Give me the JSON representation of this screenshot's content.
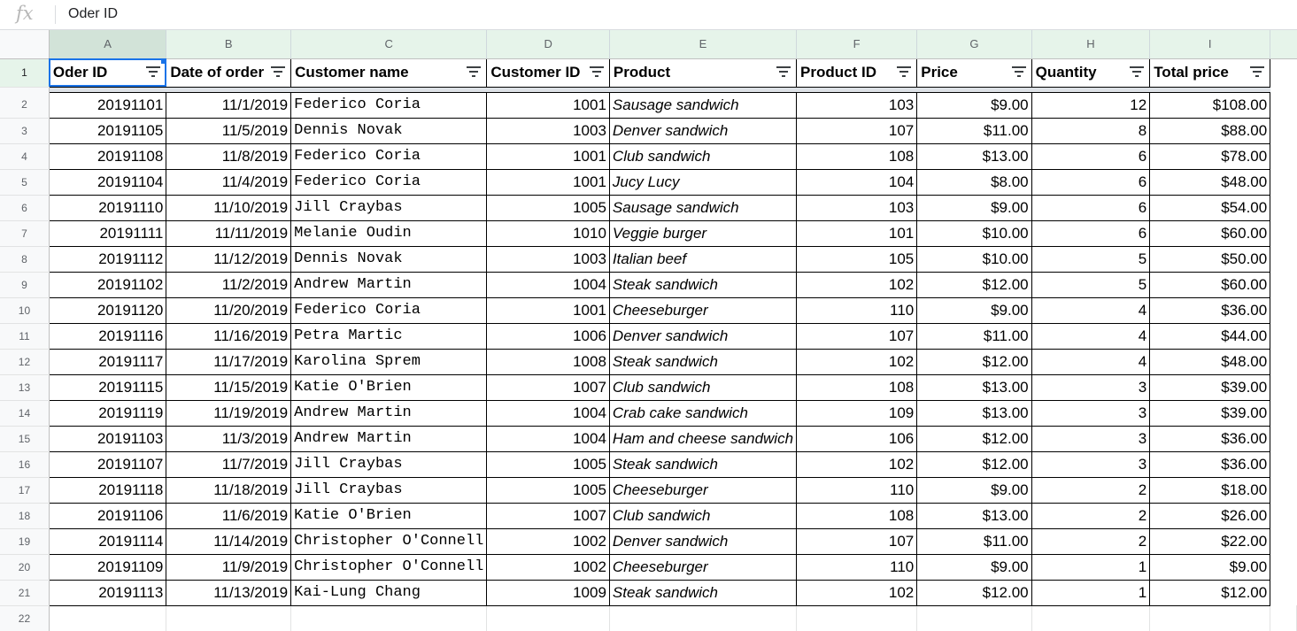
{
  "formula_bar": {
    "icon": "fx",
    "value": "Oder ID"
  },
  "columns": [
    "A",
    "B",
    "C",
    "D",
    "E",
    "F",
    "G",
    "H",
    "I"
  ],
  "headers": [
    "Oder ID",
    "Date of order",
    "Customer name",
    "Customer ID",
    "Product",
    "Product ID",
    "Price",
    "Quantity",
    "Total price"
  ],
  "header_row_number": "1",
  "rows": [
    {
      "n": "2",
      "id": "20191101",
      "date": "11/1/2019",
      "name": "Federico Coria",
      "cid": "1001",
      "product": "Sausage sandwich",
      "pid": "103",
      "price": "$9.00",
      "qty": "12",
      "total": "$108.00"
    },
    {
      "n": "3",
      "id": "20191105",
      "date": "11/5/2019",
      "name": "Dennis Novak",
      "cid": "1003",
      "product": "Denver sandwich",
      "pid": "107",
      "price": "$11.00",
      "qty": "8",
      "total": "$88.00"
    },
    {
      "n": "4",
      "id": "20191108",
      "date": "11/8/2019",
      "name": "Federico Coria",
      "cid": "1001",
      "product": "Club sandwich",
      "pid": "108",
      "price": "$13.00",
      "qty": "6",
      "total": "$78.00"
    },
    {
      "n": "5",
      "id": "20191104",
      "date": "11/4/2019",
      "name": "Federico Coria",
      "cid": "1001",
      "product": "Jucy Lucy",
      "pid": "104",
      "price": "$8.00",
      "qty": "6",
      "total": "$48.00"
    },
    {
      "n": "6",
      "id": "20191110",
      "date": "11/10/2019",
      "name": "Jill Craybas",
      "cid": "1005",
      "product": "Sausage sandwich",
      "pid": "103",
      "price": "$9.00",
      "qty": "6",
      "total": "$54.00"
    },
    {
      "n": "7",
      "id": "20191111",
      "date": "11/11/2019",
      "name": "Melanie Oudin",
      "cid": "1010",
      "product": "Veggie burger",
      "pid": "101",
      "price": "$10.00",
      "qty": "6",
      "total": "$60.00"
    },
    {
      "n": "8",
      "id": "20191112",
      "date": "11/12/2019",
      "name": "Dennis Novak",
      "cid": "1003",
      "product": "Italian beef",
      "pid": "105",
      "price": "$10.00",
      "qty": "5",
      "total": "$50.00"
    },
    {
      "n": "9",
      "id": "20191102",
      "date": "11/2/2019",
      "name": "Andrew Martin",
      "cid": "1004",
      "product": "Steak sandwich",
      "pid": "102",
      "price": "$12.00",
      "qty": "5",
      "total": "$60.00"
    },
    {
      "n": "10",
      "id": "20191120",
      "date": "11/20/2019",
      "name": "Federico Coria",
      "cid": "1001",
      "product": "Cheeseburger",
      "pid": "110",
      "price": "$9.00",
      "qty": "4",
      "total": "$36.00"
    },
    {
      "n": "11",
      "id": "20191116",
      "date": "11/16/2019",
      "name": "Petra Martic",
      "cid": "1006",
      "product": "Denver sandwich",
      "pid": "107",
      "price": "$11.00",
      "qty": "4",
      "total": "$44.00"
    },
    {
      "n": "12",
      "id": "20191117",
      "date": "11/17/2019",
      "name": "Karolina Sprem",
      "cid": "1008",
      "product": "Steak sandwich",
      "pid": "102",
      "price": "$12.00",
      "qty": "4",
      "total": "$48.00"
    },
    {
      "n": "13",
      "id": "20191115",
      "date": "11/15/2019",
      "name": "Katie O'Brien",
      "cid": "1007",
      "product": "Club sandwich",
      "pid": "108",
      "price": "$13.00",
      "qty": "3",
      "total": "$39.00"
    },
    {
      "n": "14",
      "id": "20191119",
      "date": "11/19/2019",
      "name": "Andrew Martin",
      "cid": "1004",
      "product": "Crab cake sandwich",
      "pid": "109",
      "price": "$13.00",
      "qty": "3",
      "total": "$39.00"
    },
    {
      "n": "15",
      "id": "20191103",
      "date": "11/3/2019",
      "name": "Andrew Martin",
      "cid": "1004",
      "product": "Ham and cheese sandwich",
      "pid": "106",
      "price": "$12.00",
      "qty": "3",
      "total": "$36.00"
    },
    {
      "n": "16",
      "id": "20191107",
      "date": "11/7/2019",
      "name": "Jill Craybas",
      "cid": "1005",
      "product": "Steak sandwich",
      "pid": "102",
      "price": "$12.00",
      "qty": "3",
      "total": "$36.00"
    },
    {
      "n": "17",
      "id": "20191118",
      "date": "11/18/2019",
      "name": "Jill Craybas",
      "cid": "1005",
      "product": "Cheeseburger",
      "pid": "110",
      "price": "$9.00",
      "qty": "2",
      "total": "$18.00"
    },
    {
      "n": "18",
      "id": "20191106",
      "date": "11/6/2019",
      "name": "Katie O'Brien",
      "cid": "1007",
      "product": "Club sandwich",
      "pid": "108",
      "price": "$13.00",
      "qty": "2",
      "total": "$26.00"
    },
    {
      "n": "19",
      "id": "20191114",
      "date": "11/14/2019",
      "name": "Christopher O'Connell",
      "cid": "1002",
      "product": "Denver sandwich",
      "pid": "107",
      "price": "$11.00",
      "qty": "2",
      "total": "$22.00"
    },
    {
      "n": "20",
      "id": "20191109",
      "date": "11/9/2019",
      "name": "Christopher O'Connell",
      "cid": "1002",
      "product": "Cheeseburger",
      "pid": "110",
      "price": "$9.00",
      "qty": "1",
      "total": "$9.00"
    },
    {
      "n": "21",
      "id": "20191113",
      "date": "11/13/2019",
      "name": "Kai-Lung Chang",
      "cid": "1009",
      "product": "Steak sandwich",
      "pid": "102",
      "price": "$12.00",
      "qty": "1",
      "total": "$12.00"
    }
  ],
  "empty_row_number": "22",
  "colors": {
    "id": "#4a86e8",
    "price": "#f6b26b",
    "total": "#6aa84f",
    "selection": "#1a73e8"
  }
}
